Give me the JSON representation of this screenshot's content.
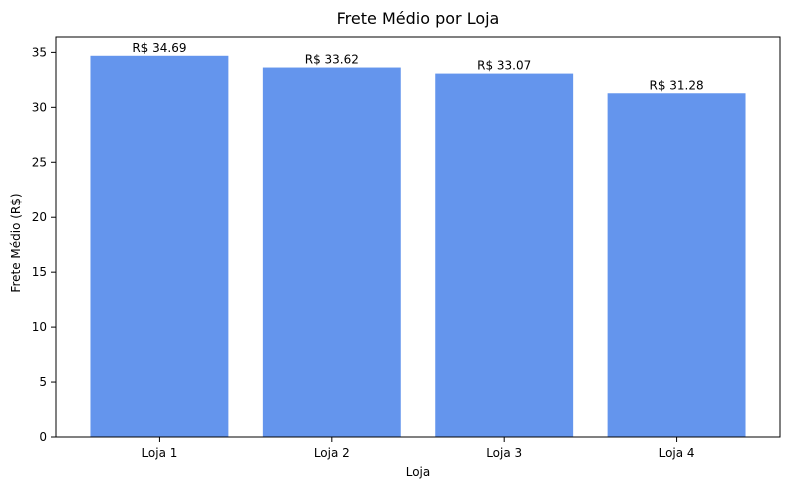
{
  "chart_data": {
    "type": "bar",
    "title": "Frete Médio por Loja",
    "xlabel": "Loja",
    "ylabel": "Frete Médio (R$)",
    "categories": [
      "Loja 1",
      "Loja 2",
      "Loja 3",
      "Loja 4"
    ],
    "values": [
      34.69,
      33.62,
      33.07,
      31.28
    ],
    "value_labels": [
      "R$ 34.69",
      "R$ 33.62",
      "R$ 33.07",
      "R$ 31.28"
    ],
    "ylim": [
      0,
      36.4
    ],
    "yticks": [
      0,
      5,
      10,
      15,
      20,
      25,
      30,
      35
    ],
    "bar_color": "#6495ED",
    "grid": false,
    "legend": "none"
  }
}
